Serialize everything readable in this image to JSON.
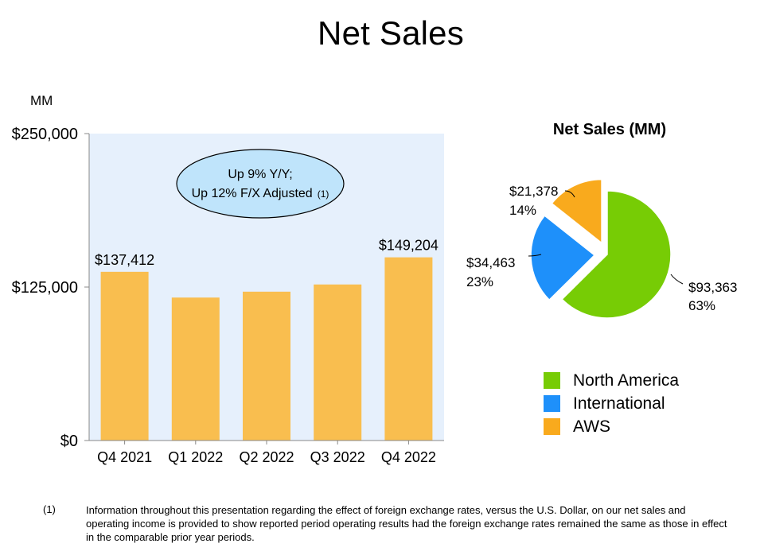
{
  "page": {
    "title": "Net Sales",
    "unit_label": "MM"
  },
  "chart_data": [
    {
      "type": "bar",
      "categories": [
        "Q4 2021",
        "Q1 2022",
        "Q2 2022",
        "Q3 2022",
        "Q4 2022"
      ],
      "values": [
        137412,
        116444,
        121234,
        127101,
        149204
      ],
      "data_labels": [
        "$137,412",
        "",
        "",
        "",
        "$149,204"
      ],
      "ylim": [
        0,
        250000
      ],
      "yticks": [
        0,
        125000,
        250000
      ],
      "ytick_labels": [
        "$0",
        "$125,000",
        "$250,000"
      ],
      "bar_color": "#f9be4f",
      "plot_bg": "#e6f0fc",
      "annotation": {
        "line1": "Up 9% Y/Y;",
        "line2": "Up 12% F/X Adjusted",
        "note": "(1)"
      }
    },
    {
      "type": "pie",
      "title": "Net Sales (MM)",
      "slices": [
        {
          "name": "North America",
          "value": 93363,
          "value_label": "$93,363",
          "pct_label": "63%",
          "color": "#77cc05"
        },
        {
          "name": "International",
          "value": 34463,
          "value_label": "$34,463",
          "pct_label": "23%",
          "color": "#1e90fa"
        },
        {
          "name": "AWS",
          "value": 21378,
          "value_label": "$21,378",
          "pct_label": "14%",
          "color": "#f9aa1d"
        }
      ],
      "legend_position": "bottom"
    }
  ],
  "footnote": {
    "number": "(1)",
    "text": "Information throughout this presentation regarding the effect of foreign exchange rates, versus the U.S. Dollar, on our net sales and operating income is provided to show reported period operating results had the foreign exchange rates remained the same as those in effect in the comparable prior year periods."
  }
}
